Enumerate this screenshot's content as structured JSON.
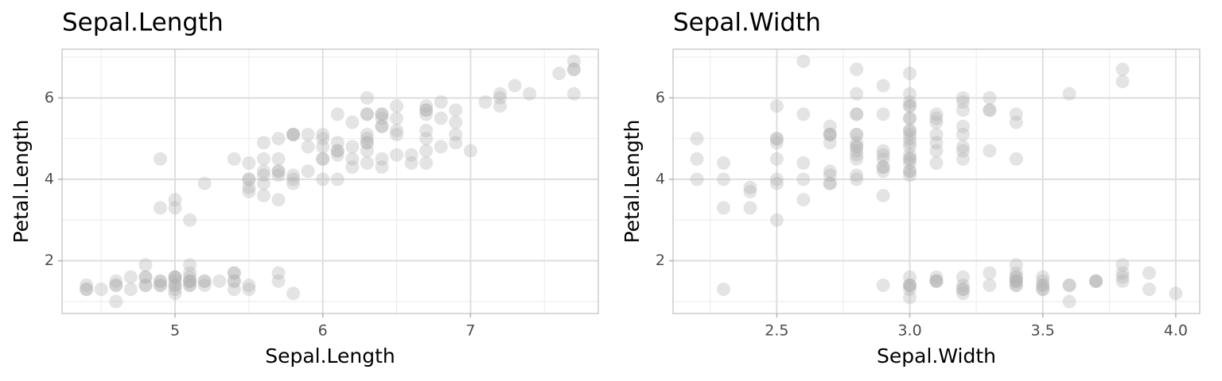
{
  "chart_data": [
    {
      "type": "scatter",
      "title": "Sepal.Length",
      "x_label": "Sepal.Length",
      "y_label": "Petal.Length",
      "x": [
        5.1,
        4.9,
        4.7,
        4.6,
        5.0,
        5.4,
        4.6,
        5.0,
        4.4,
        4.9,
        5.4,
        4.8,
        4.8,
        5.8,
        5.7,
        5.4,
        5.1,
        5.7,
        5.1,
        5.4,
        5.1,
        4.6,
        5.1,
        4.8,
        5.0,
        5.0,
        5.2,
        5.2,
        4.7,
        4.8,
        5.4,
        5.2,
        5.5,
        4.9,
        5.0,
        5.5,
        4.9,
        4.4,
        5.1,
        5.0,
        4.5,
        4.4,
        5.0,
        5.1,
        4.8,
        5.1,
        4.6,
        5.3,
        5.0,
        7.0,
        6.4,
        6.9,
        5.5,
        6.5,
        5.7,
        6.3,
        4.9,
        6.6,
        5.2,
        5.0,
        5.9,
        6.0,
        6.1,
        5.6,
        6.7,
        5.6,
        5.8,
        6.2,
        5.6,
        5.9,
        6.1,
        6.3,
        6.1,
        6.4,
        6.6,
        6.8,
        6.7,
        6.0,
        5.7,
        5.5,
        5.5,
        5.8,
        6.0,
        5.4,
        6.0,
        6.7,
        6.3,
        5.6,
        5.5,
        5.5,
        6.1,
        5.8,
        5.0,
        5.6,
        5.7,
        5.7,
        6.2,
        5.1,
        5.7,
        6.3,
        5.8,
        7.1,
        6.3,
        6.5,
        7.6,
        4.9,
        7.3,
        6.7,
        7.2,
        6.5,
        6.4,
        6.8,
        5.7,
        5.8,
        6.4,
        6.5,
        7.7,
        7.7,
        6.0,
        6.9,
        5.6,
        7.7,
        6.3,
        6.7,
        7.2,
        6.2,
        6.1,
        6.4,
        7.2,
        7.4,
        6.4,
        6.3,
        6.1,
        7.7,
        6.3,
        6.4,
        6.0,
        6.9,
        6.7,
        6.9,
        5.8,
        6.8,
        6.7,
        6.7,
        6.3,
        6.5,
        6.2,
        5.9
      ],
      "y": [
        1.4,
        1.4,
        1.3,
        1.5,
        1.4,
        1.7,
        1.4,
        1.5,
        1.4,
        1.5,
        1.5,
        1.6,
        1.4,
        1.2,
        1.5,
        1.3,
        1.4,
        1.7,
        1.5,
        1.7,
        1.5,
        1.0,
        1.7,
        1.9,
        1.6,
        1.6,
        1.5,
        1.4,
        1.6,
        1.6,
        1.5,
        1.5,
        1.4,
        1.5,
        1.2,
        1.3,
        1.4,
        1.3,
        1.5,
        1.3,
        1.3,
        1.3,
        1.6,
        1.9,
        1.4,
        1.6,
        1.4,
        1.5,
        1.4,
        4.7,
        4.5,
        4.9,
        4.0,
        4.6,
        4.5,
        4.7,
        3.3,
        4.6,
        3.9,
        3.5,
        4.2,
        4.0,
        4.7,
        3.6,
        4.4,
        4.5,
        4.1,
        4.5,
        3.9,
        4.8,
        4.0,
        4.9,
        4.7,
        4.3,
        4.4,
        4.8,
        5.0,
        4.5,
        3.5,
        3.8,
        3.7,
        3.9,
        5.1,
        4.5,
        4.5,
        4.7,
        4.4,
        4.1,
        4.0,
        4.4,
        4.6,
        4.0,
        3.3,
        4.2,
        4.2,
        4.2,
        4.3,
        3.0,
        4.1,
        6.0,
        5.1,
        5.9,
        5.6,
        5.8,
        6.6,
        4.5,
        6.3,
        5.8,
        6.1,
        5.1,
        5.3,
        5.5,
        5.0,
        5.1,
        5.3,
        5.5,
        6.7,
        6.9,
        5.0,
        5.7,
        4.9,
        6.7,
        4.9,
        5.7,
        6.0,
        4.8,
        4.9,
        5.6,
        5.8,
        6.1,
        5.6,
        5.1,
        5.6,
        6.1,
        5.6,
        5.5,
        4.8,
        5.4,
        5.6,
        5.1,
        5.1,
        5.9,
        5.7,
        5.2,
        5.0,
        5.2,
        5.4,
        5.1
      ],
      "xlim": [
        4.235,
        7.865
      ],
      "ylim": [
        0.705,
        7.195
      ],
      "xticks": [
        5,
        6,
        7
      ],
      "yticks": [
        2,
        4,
        6
      ],
      "xminor": [
        4.5,
        5.5,
        6.5,
        7.5
      ],
      "yminor": [
        1,
        3,
        5,
        7
      ],
      "grid": true,
      "color": "#b3b3b3",
      "alpha": 0.35
    },
    {
      "type": "scatter",
      "title": "Sepal.Width",
      "x_label": "Sepal.Width",
      "y_label": "Petal.Length",
      "x": [
        3.5,
        3.0,
        3.2,
        3.1,
        3.6,
        3.9,
        3.4,
        3.4,
        2.9,
        3.1,
        3.7,
        3.4,
        3.0,
        3.0,
        4.0,
        3.9,
        3.5,
        3.8,
        3.8,
        3.4,
        3.7,
        3.6,
        3.3,
        3.4,
        3.0,
        3.4,
        3.5,
        3.4,
        3.2,
        3.1,
        3.4,
        3.1,
        3.2,
        3.5,
        3.6,
        3.0,
        3.4,
        3.5,
        2.3,
        3.2,
        3.5,
        3.8,
        3.0,
        3.8,
        3.2,
        3.7,
        3.3,
        3.2,
        3.2,
        3.1,
        2.3,
        2.8,
        2.8,
        3.3,
        2.4,
        2.9,
        2.7,
        3.0,
        2.2,
        2.9,
        2.9,
        3.1,
        3.0,
        2.7,
        2.2,
        2.5,
        3.2,
        2.8,
        2.5,
        2.8,
        2.9,
        3.0,
        2.8,
        3.0,
        2.9,
        2.6,
        2.4,
        2.4,
        2.7,
        2.7,
        3.0,
        3.4,
        3.1,
        2.3,
        3.0,
        2.5,
        2.6,
        3.0,
        2.6,
        2.3,
        2.7,
        3.0,
        2.9,
        2.9,
        2.5,
        2.8,
        3.3,
        2.7,
        3.0,
        2.9,
        3.0,
        3.0,
        2.5,
        2.9,
        2.5,
        3.6,
        3.2,
        2.7,
        3.0,
        2.5,
        2.8,
        3.2,
        3.0,
        3.8,
        2.6,
        2.2,
        3.2,
        2.8,
        2.8,
        2.7,
        3.3,
        3.2,
        2.8,
        3.0,
        2.8,
        3.0,
        2.8,
        3.8,
        2.8,
        2.8,
        2.6,
        3.0,
        3.4,
        3.1,
        3.0,
        3.1,
        3.1,
        3.1,
        2.7,
        3.2,
        3.3,
        3.0,
        2.5,
        3.0,
        3.4,
        3.0
      ],
      "y": [
        1.4,
        1.4,
        1.3,
        1.5,
        1.4,
        1.7,
        1.4,
        1.5,
        1.4,
        1.5,
        1.5,
        1.6,
        1.4,
        1.1,
        1.2,
        1.3,
        1.4,
        1.7,
        1.5,
        1.7,
        1.5,
        1.0,
        1.7,
        1.9,
        1.6,
        1.6,
        1.5,
        1.4,
        1.6,
        1.6,
        1.5,
        1.5,
        1.2,
        1.3,
        1.4,
        1.3,
        1.5,
        1.3,
        1.3,
        1.3,
        1.6,
        1.9,
        1.4,
        1.6,
        1.4,
        1.5,
        1.4,
        4.7,
        4.5,
        4.9,
        4.0,
        4.6,
        4.5,
        4.7,
        3.3,
        4.6,
        3.9,
        4.2,
        4.0,
        4.7,
        3.6,
        4.4,
        4.5,
        4.1,
        4.5,
        3.9,
        4.8,
        4.0,
        4.9,
        4.7,
        4.3,
        4.4,
        4.8,
        5.0,
        4.5,
        3.5,
        3.8,
        3.7,
        3.9,
        5.1,
        4.5,
        4.5,
        4.7,
        4.4,
        4.1,
        4.0,
        4.4,
        4.6,
        4.0,
        3.3,
        4.2,
        4.2,
        4.2,
        4.3,
        3.0,
        4.1,
        6.0,
        5.1,
        5.9,
        5.6,
        5.8,
        6.6,
        4.5,
        6.3,
        5.8,
        6.1,
        5.1,
        5.3,
        5.5,
        5.0,
        5.1,
        5.3,
        5.5,
        6.7,
        6.9,
        5.0,
        5.7,
        4.9,
        6.7,
        4.9,
        5.7,
        6.0,
        4.8,
        4.9,
        5.6,
        5.8,
        6.1,
        6.4,
        5.6,
        5.1,
        5.6,
        6.1,
        5.6,
        5.5,
        4.8,
        5.4,
        5.6,
        5.1,
        5.1,
        5.9,
        5.7,
        5.2,
        5.0,
        5.2,
        5.4,
        5.1
      ],
      "xlim": [
        2.11,
        4.09
      ],
      "ylim": [
        0.705,
        7.195
      ],
      "xticks": [
        2.5,
        {
          "value": 3,
          "label": "3.0"
        },
        3.5,
        {
          "value": 4,
          "label": "4.0"
        }
      ],
      "yticks": [
        2,
        4,
        6
      ],
      "xminor": [
        2.25,
        2.75,
        3.25,
        3.75
      ],
      "yminor": [
        1,
        3,
        5,
        7
      ],
      "grid": true,
      "color": "#b3b3b3",
      "alpha": 0.35
    }
  ]
}
